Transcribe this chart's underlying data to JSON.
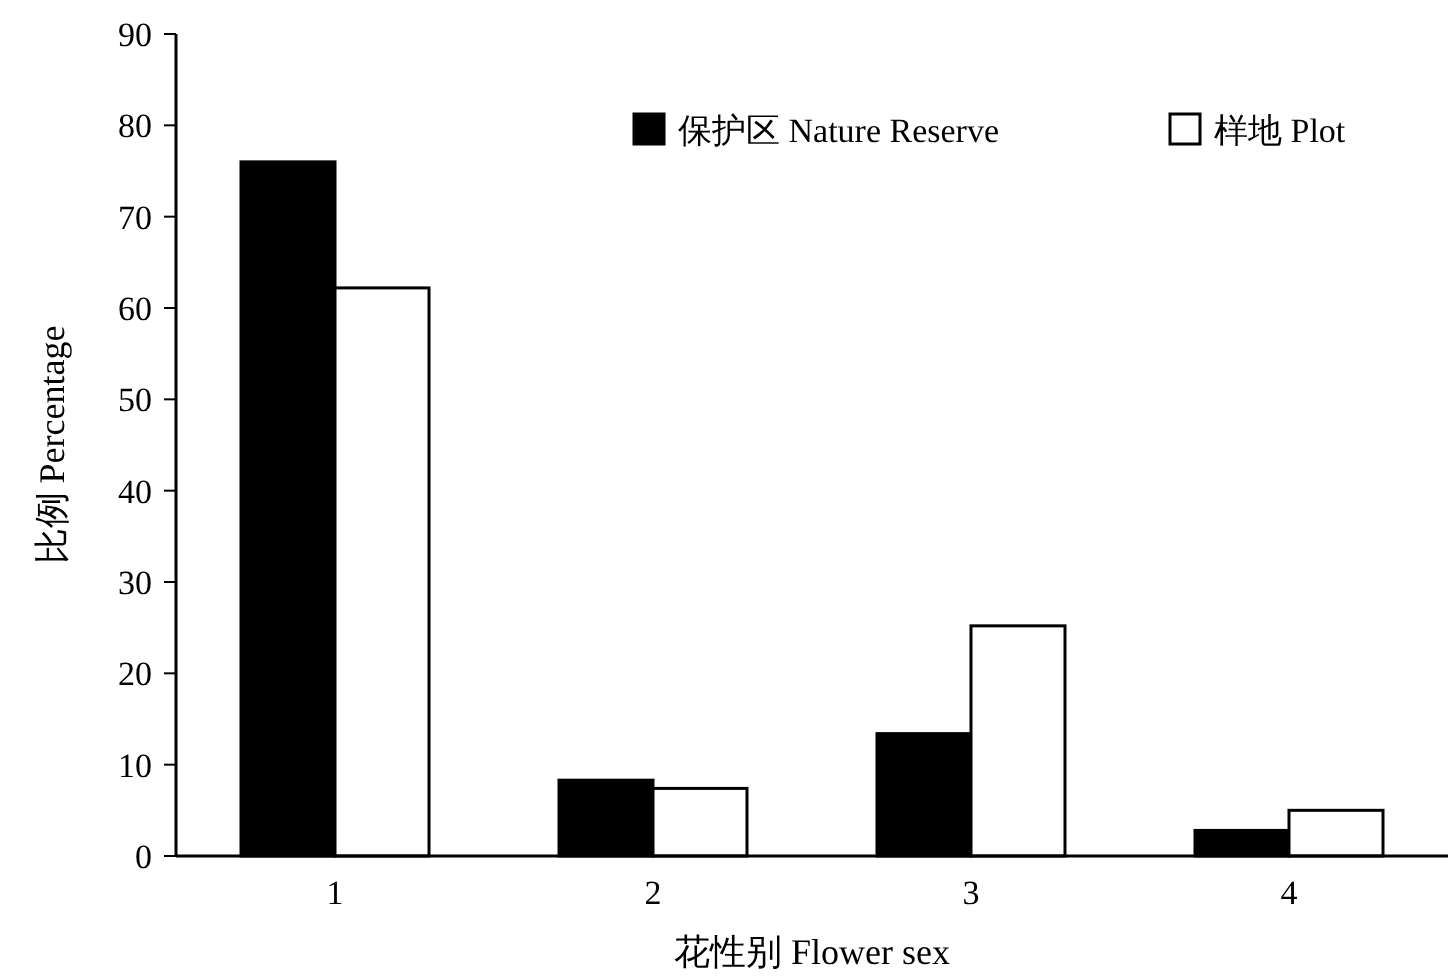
{
  "chart_data": {
    "type": "bar",
    "xlabel": "花性别 Flower sex",
    "ylabel": "比例 Percentage",
    "categories": [
      "1",
      "2",
      "3",
      "4"
    ],
    "series": [
      {
        "name": "保护区 Nature Reserve",
        "color": "#000000",
        "values": [
          76.0,
          8.3,
          13.4,
          2.8
        ]
      },
      {
        "name": "样地 Plot",
        "color": "#ffffff",
        "values": [
          62.2,
          7.4,
          25.2,
          5.0
        ]
      }
    ],
    "ylim": [
      0,
      90
    ],
    "yticks": [
      0,
      10,
      20,
      30,
      40,
      50,
      60,
      70,
      80,
      90
    ],
    "legend": "top right",
    "grid": false
  }
}
